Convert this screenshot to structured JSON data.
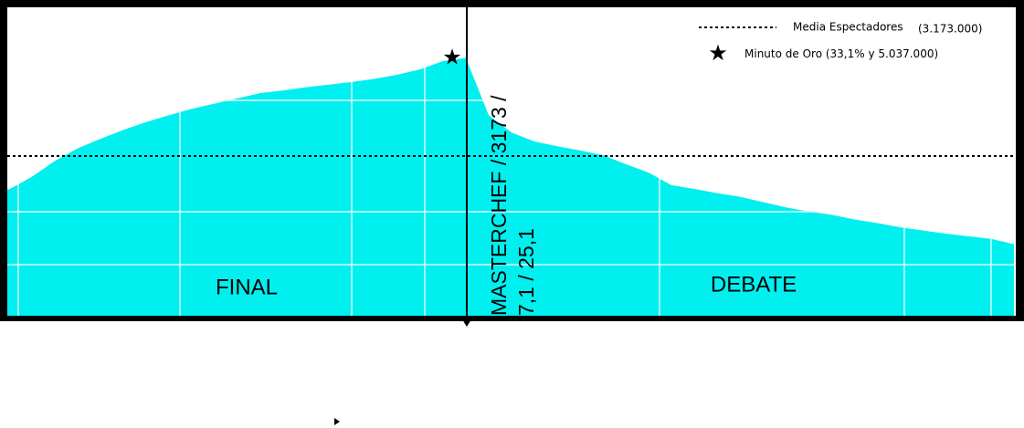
{
  "chart_data": {
    "type": "area",
    "color": "#00efef",
    "values": [
      2540000,
      2780000,
      3080000,
      3320000,
      3500000,
      3670000,
      3820000,
      3950000,
      4070000,
      4170000,
      4270000,
      4370000,
      4420000,
      4480000,
      4530000,
      4580000,
      4640000,
      4720000,
      4820000,
      4980000,
      5037000,
      3950000,
      3620000,
      3450000,
      3360000,
      3280000,
      3190000,
      3020000,
      2860000,
      2620000,
      2550000,
      2470000,
      2400000,
      2300000,
      2200000,
      2120000,
      2060000,
      1970000,
      1900000,
      1820000,
      1760000,
      1700000,
      1650000,
      1600000,
      1500000
    ],
    "ylim": [
      0,
      6000000
    ],
    "average": {
      "name": "Media Espectadores",
      "value": 3173000,
      "label": "(3.173.000)"
    },
    "golden_minute": {
      "name": "Minuto de Oro",
      "label": "(33,1% y 5.037.000)",
      "value": 5037000,
      "share": 33.1
    },
    "sections": [
      "FINAL",
      "DEBATE"
    ],
    "divider_label": [
      "MASTERCHEF / 3173 /",
      "7,1 / 25,1"
    ]
  }
}
